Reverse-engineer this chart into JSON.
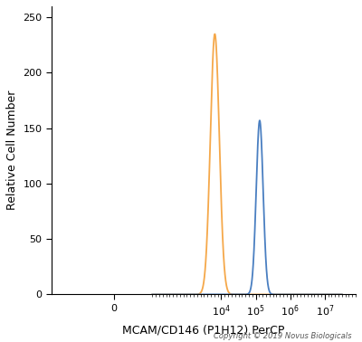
{
  "orange_peak_x": 6500,
  "orange_peak_y": 235,
  "orange_sigma": 0.13,
  "blue_peak_x": 130000,
  "blue_peak_y": 157,
  "blue_sigma": 0.1,
  "orange_color": "#F5A84A",
  "blue_color": "#4A7FC1",
  "ylim": [
    0,
    260
  ],
  "yticks": [
    0,
    50,
    100,
    150,
    200,
    250
  ],
  "xtick_positions": [
    0,
    10000,
    100000,
    1000000,
    10000000
  ],
  "xtick_labels": [
    "0",
    "10$^{4}$",
    "10$^{5}$",
    "10$^{6}$",
    "10$^{7}$"
  ],
  "xlabel": "MCAM/CD146 (P1H12) PerCP",
  "ylabel": "Relative Cell Number",
  "copyright": "Copyright © 2019 Novus Biologicals",
  "bg_color": "#ffffff",
  "linewidth": 1.3
}
